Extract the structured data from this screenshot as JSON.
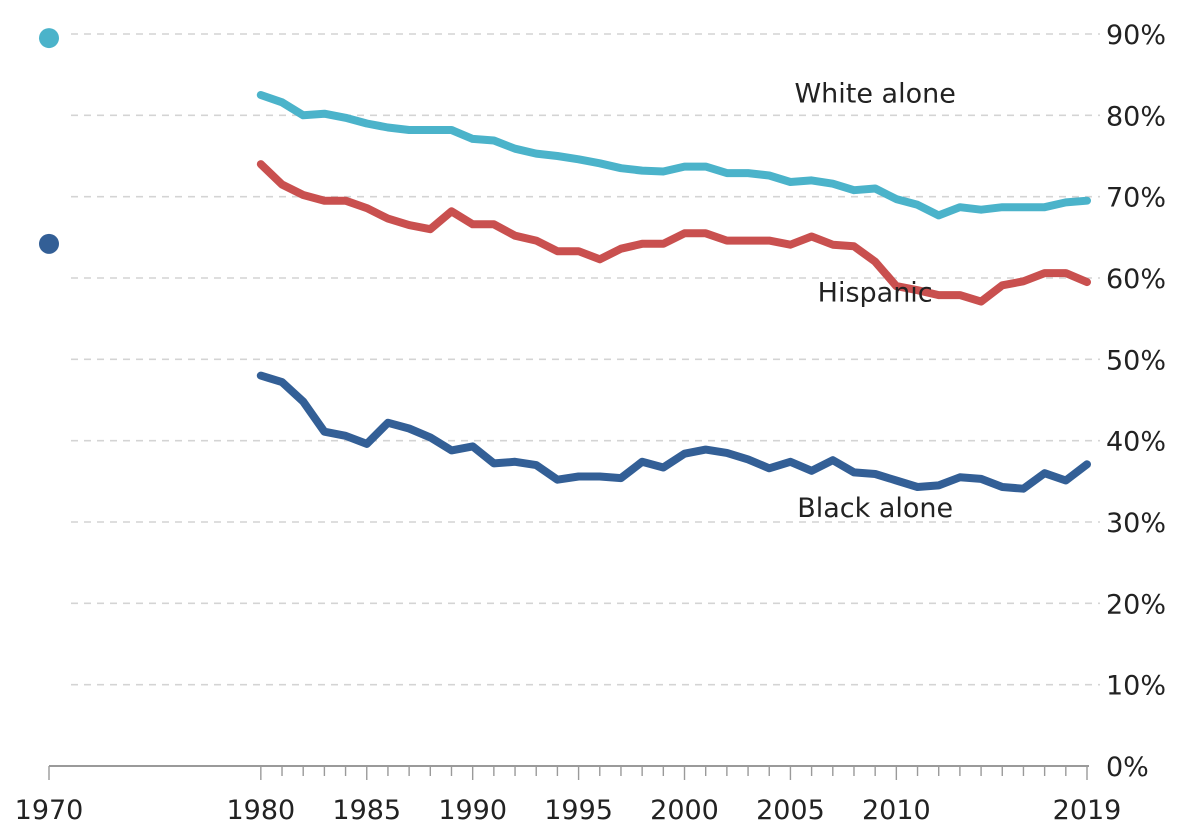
{
  "chart_data": {
    "type": "line",
    "title": "",
    "xlabel": "",
    "ylabel": "",
    "xlim": [
      1970,
      2019
    ],
    "ylim": [
      0,
      90
    ],
    "y_ticks": [
      0,
      10,
      20,
      30,
      40,
      50,
      60,
      70,
      80,
      90
    ],
    "y_tick_labels": [
      "0%",
      "10%",
      "20%",
      "30%",
      "40%",
      "50%",
      "60%",
      "70%",
      "80%",
      "90%"
    ],
    "x_ticks": [
      1970,
      1980,
      1985,
      1990,
      1995,
      2000,
      2005,
      2010,
      2019
    ],
    "x_tick_labels": [
      "1970",
      "1980",
      "1985",
      "1990",
      "1995",
      "2000",
      "2005",
      "2010",
      "2019"
    ],
    "grid": true,
    "y_axis_position": "right",
    "series": [
      {
        "name": "White alone",
        "color": "#4bb3ca",
        "point_1970": 89.5,
        "x": [
          1980,
          1981,
          1982,
          1983,
          1984,
          1985,
          1986,
          1987,
          1988,
          1989,
          1990,
          1991,
          1992,
          1993,
          1994,
          1995,
          1996,
          1997,
          1998,
          1999,
          2000,
          2001,
          2002,
          2003,
          2004,
          2005,
          2006,
          2007,
          2008,
          2009,
          2010,
          2011,
          2012,
          2013,
          2014,
          2015,
          2016,
          2017,
          2018,
          2019
        ],
        "values": [
          82.5,
          81.6,
          80.0,
          80.2,
          79.7,
          79.0,
          78.5,
          78.2,
          78.2,
          78.2,
          77.1,
          76.9,
          75.9,
          75.3,
          75.0,
          74.6,
          74.1,
          73.5,
          73.2,
          73.1,
          73.7,
          73.7,
          72.9,
          72.9,
          72.6,
          71.8,
          72.0,
          71.6,
          70.8,
          71.0,
          69.7,
          69.0,
          67.7,
          68.7,
          68.4,
          68.7,
          68.7,
          68.7,
          69.3,
          69.5
        ]
      },
      {
        "name": "Hispanic",
        "color": "#c9504f",
        "x": [
          1980,
          1981,
          1982,
          1983,
          1984,
          1985,
          1986,
          1987,
          1988,
          1989,
          1990,
          1991,
          1992,
          1993,
          1994,
          1995,
          1996,
          1997,
          1998,
          1999,
          2000,
          2001,
          2002,
          2003,
          2004,
          2005,
          2006,
          2007,
          2008,
          2009,
          2010,
          2011,
          2012,
          2013,
          2014,
          2015,
          2016,
          2017,
          2018,
          2019
        ],
        "values": [
          74.0,
          71.5,
          70.2,
          69.5,
          69.5,
          68.6,
          67.3,
          66.5,
          66.0,
          68.2,
          66.6,
          66.6,
          65.2,
          64.6,
          63.3,
          63.3,
          62.3,
          63.6,
          64.2,
          64.2,
          65.5,
          65.5,
          64.6,
          64.6,
          64.6,
          64.1,
          65.1,
          64.1,
          63.9,
          62.0,
          59.0,
          58.5,
          57.9,
          57.9,
          57.1,
          59.1,
          59.6,
          60.6,
          60.6,
          59.5
        ]
      },
      {
        "name": "Black alone",
        "color": "#335f96",
        "point_1970": 64.2,
        "x": [
          1980,
          1981,
          1982,
          1983,
          1984,
          1985,
          1986,
          1987,
          1988,
          1989,
          1990,
          1991,
          1992,
          1993,
          1994,
          1995,
          1996,
          1997,
          1998,
          1999,
          2000,
          2001,
          2002,
          2003,
          2004,
          2005,
          2006,
          2007,
          2008,
          2009,
          2010,
          2011,
          2012,
          2013,
          2014,
          2015,
          2016,
          2017,
          2018,
          2019
        ],
        "values": [
          48.0,
          47.2,
          44.8,
          41.1,
          40.6,
          39.6,
          42.2,
          41.5,
          40.4,
          38.8,
          39.3,
          37.2,
          37.4,
          37.0,
          35.2,
          35.6,
          35.6,
          35.4,
          37.4,
          36.7,
          38.4,
          38.9,
          38.5,
          37.7,
          36.6,
          37.4,
          36.3,
          37.6,
          36.1,
          35.9,
          35.1,
          34.3,
          34.5,
          35.5,
          35.3,
          34.3,
          34.1,
          36.0,
          35.1,
          37.1
        ]
      }
    ],
    "annotations": [
      {
        "text": "White alone",
        "x": 2009,
        "y": 81.6,
        "series": "White alone"
      },
      {
        "text": "Hispanic",
        "x": 2009,
        "y": 57.1,
        "series": "Hispanic"
      },
      {
        "text": "Black alone",
        "x": 2009,
        "y": 30.6,
        "series": "Black alone"
      }
    ]
  }
}
